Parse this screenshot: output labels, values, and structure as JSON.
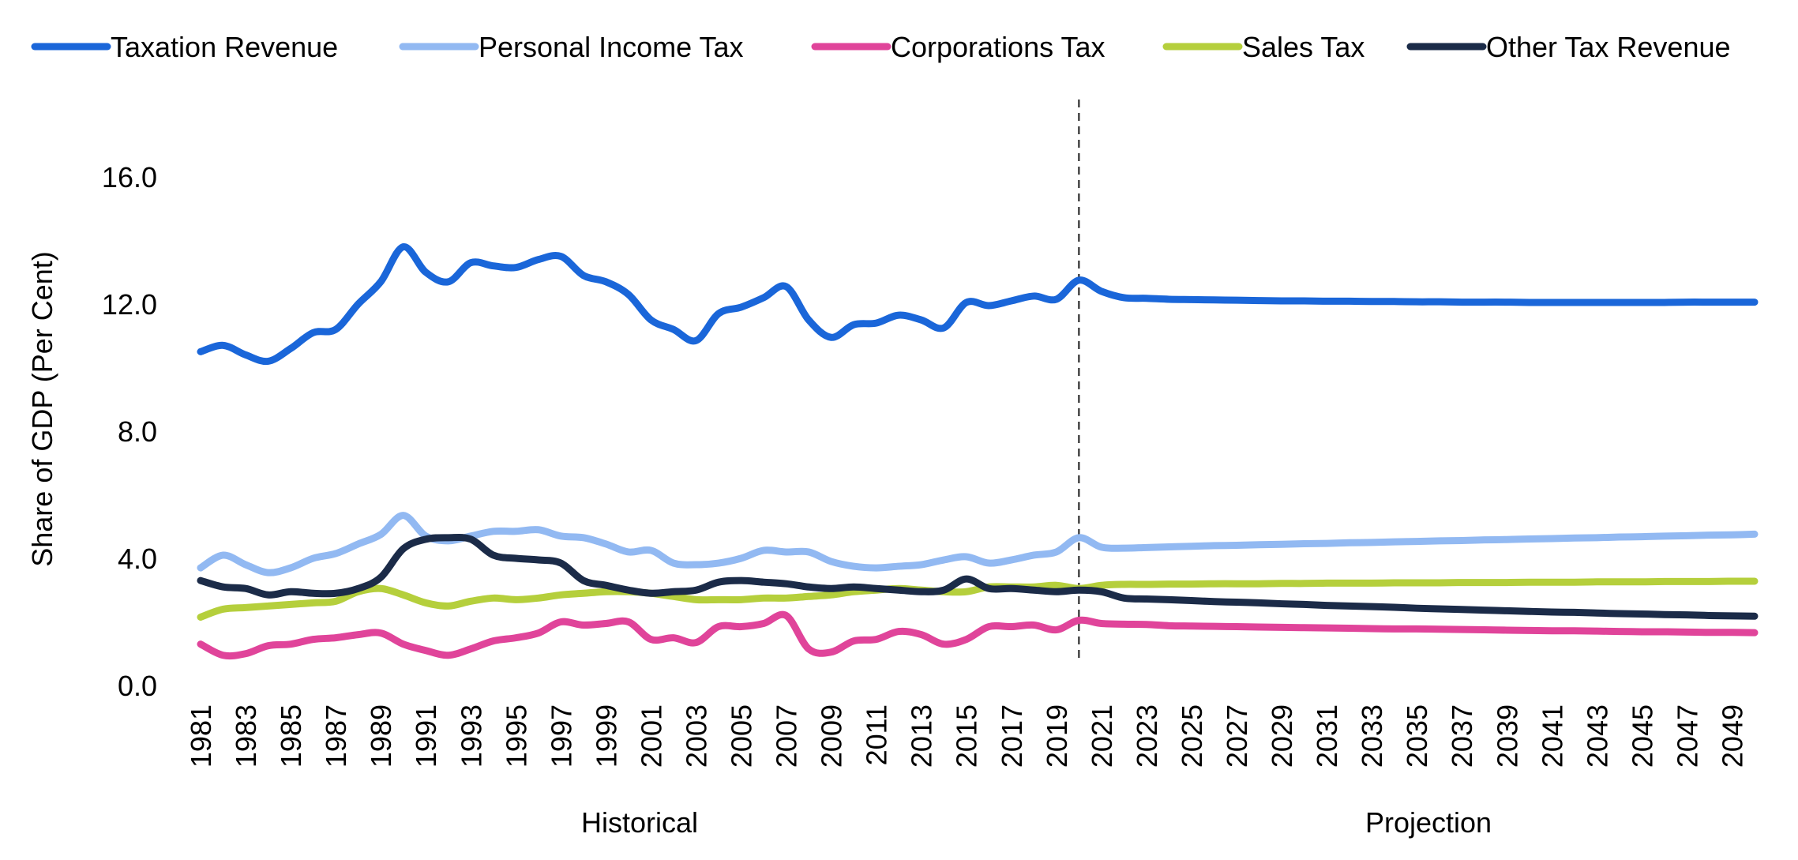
{
  "chart_data": {
    "type": "line",
    "title": "",
    "ylabel": "Share of GDP (Per Cent)",
    "xlabel": "",
    "ylim": [
      0,
      18
    ],
    "yticks": [
      "0.0",
      "4.0",
      "8.0",
      "12.0",
      "16.0"
    ],
    "ytick_values": [
      0,
      4,
      8,
      12,
      16
    ],
    "x_start": 1981,
    "x_end": 2050,
    "xtick_labels": [
      "1981",
      "1983",
      "1985",
      "1987",
      "1989",
      "1991",
      "1993",
      "1995",
      "1997",
      "1999",
      "2001",
      "2003",
      "2005",
      "2007",
      "2009",
      "2011",
      "2013",
      "2015",
      "2017",
      "2019",
      "2021",
      "2023",
      "2025",
      "2027",
      "2029",
      "2031",
      "2033",
      "2035",
      "2037",
      "2039",
      "2041",
      "2043",
      "2045",
      "2047",
      "2049"
    ],
    "divider_year": 2020,
    "sections": [
      {
        "label": "Historical"
      },
      {
        "label": "Projection"
      }
    ],
    "grid": false,
    "legend_position": "top",
    "series": [
      {
        "name": "Taxation Revenue",
        "color": "#1a66d9",
        "values": [
          10.5,
          10.7,
          10.4,
          10.2,
          10.6,
          11.1,
          11.2,
          12.0,
          12.7,
          13.8,
          13.0,
          12.7,
          13.3,
          13.2,
          13.15,
          13.4,
          13.5,
          12.9,
          12.7,
          12.3,
          11.5,
          11.2,
          10.85,
          11.7,
          11.9,
          12.2,
          12.55,
          11.5,
          10.95,
          11.35,
          11.4,
          11.65,
          11.5,
          11.25,
          12.05,
          11.95,
          12.1,
          12.25,
          12.15,
          12.75,
          12.4,
          12.2,
          12.18,
          12.15,
          12.14,
          12.13,
          12.12,
          12.11,
          12.1,
          12.1,
          12.09,
          12.09,
          12.08,
          12.08,
          12.07,
          12.07,
          12.06,
          12.06,
          12.06,
          12.05,
          12.05,
          12.05,
          12.05,
          12.05,
          12.05,
          12.05,
          12.06,
          12.06,
          12.06,
          12.06
        ]
      },
      {
        "name": "Personal Income Tax",
        "color": "#92b9f2",
        "values": [
          3.7,
          4.1,
          3.8,
          3.55,
          3.7,
          4.0,
          4.15,
          4.45,
          4.75,
          5.35,
          4.7,
          4.55,
          4.7,
          4.85,
          4.85,
          4.9,
          4.7,
          4.65,
          4.45,
          4.2,
          4.25,
          3.85,
          3.8,
          3.85,
          4.0,
          4.25,
          4.2,
          4.2,
          3.9,
          3.75,
          3.7,
          3.75,
          3.8,
          3.95,
          4.05,
          3.85,
          3.95,
          4.1,
          4.2,
          4.65,
          4.35,
          4.32,
          4.34,
          4.36,
          4.38,
          4.4,
          4.41,
          4.43,
          4.44,
          4.46,
          4.47,
          4.49,
          4.5,
          4.52,
          4.53,
          4.55,
          4.56,
          4.58,
          4.59,
          4.61,
          4.62,
          4.64,
          4.65,
          4.67,
          4.68,
          4.7,
          4.71,
          4.73,
          4.74,
          4.76
        ]
      },
      {
        "name": "Corporations Tax",
        "color": "#e0449a",
        "values": [
          1.3,
          0.95,
          1.0,
          1.25,
          1.3,
          1.45,
          1.5,
          1.6,
          1.65,
          1.3,
          1.1,
          0.95,
          1.15,
          1.4,
          1.5,
          1.65,
          2.0,
          1.9,
          1.95,
          2.0,
          1.45,
          1.5,
          1.35,
          1.85,
          1.85,
          1.95,
          2.2,
          1.15,
          1.05,
          1.4,
          1.45,
          1.7,
          1.6,
          1.3,
          1.45,
          1.85,
          1.85,
          1.9,
          1.75,
          2.05,
          1.95,
          1.93,
          1.92,
          1.88,
          1.87,
          1.86,
          1.85,
          1.84,
          1.83,
          1.82,
          1.81,
          1.8,
          1.79,
          1.78,
          1.78,
          1.77,
          1.76,
          1.75,
          1.74,
          1.73,
          1.72,
          1.72,
          1.71,
          1.7,
          1.69,
          1.69,
          1.68,
          1.67,
          1.67,
          1.66
        ]
      },
      {
        "name": "Sales Tax",
        "color": "#b5cf3c",
        "values": [
          2.15,
          2.4,
          2.45,
          2.5,
          2.55,
          2.6,
          2.65,
          2.95,
          3.05,
          2.85,
          2.6,
          2.5,
          2.65,
          2.75,
          2.7,
          2.75,
          2.85,
          2.9,
          2.95,
          2.95,
          2.9,
          2.8,
          2.7,
          2.7,
          2.7,
          2.75,
          2.75,
          2.8,
          2.85,
          2.95,
          3.0,
          3.05,
          3.0,
          2.95,
          2.95,
          3.1,
          3.1,
          3.1,
          3.15,
          3.05,
          3.15,
          3.18,
          3.18,
          3.19,
          3.19,
          3.2,
          3.2,
          3.2,
          3.21,
          3.21,
          3.22,
          3.22,
          3.22,
          3.23,
          3.23,
          3.23,
          3.24,
          3.24,
          3.24,
          3.25,
          3.25,
          3.25,
          3.26,
          3.26,
          3.26,
          3.27,
          3.27,
          3.27,
          3.28,
          3.28
        ]
      },
      {
        "name": "Other Tax Revenue",
        "color": "#1b2b48",
        "values": [
          3.3,
          3.1,
          3.05,
          2.85,
          2.95,
          2.9,
          2.9,
          3.05,
          3.4,
          4.3,
          4.6,
          4.65,
          4.6,
          4.1,
          4.0,
          3.95,
          3.85,
          3.3,
          3.15,
          3.0,
          2.9,
          2.95,
          3.0,
          3.25,
          3.3,
          3.25,
          3.2,
          3.1,
          3.05,
          3.1,
          3.05,
          3.0,
          2.95,
          3.0,
          3.35,
          3.05,
          3.05,
          3.0,
          2.95,
          3.0,
          2.95,
          2.75,
          2.72,
          2.7,
          2.67,
          2.64,
          2.62,
          2.6,
          2.57,
          2.55,
          2.52,
          2.5,
          2.48,
          2.46,
          2.43,
          2.41,
          2.39,
          2.37,
          2.35,
          2.33,
          2.31,
          2.3,
          2.28,
          2.26,
          2.25,
          2.23,
          2.22,
          2.2,
          2.19,
          2.18
        ]
      }
    ]
  }
}
